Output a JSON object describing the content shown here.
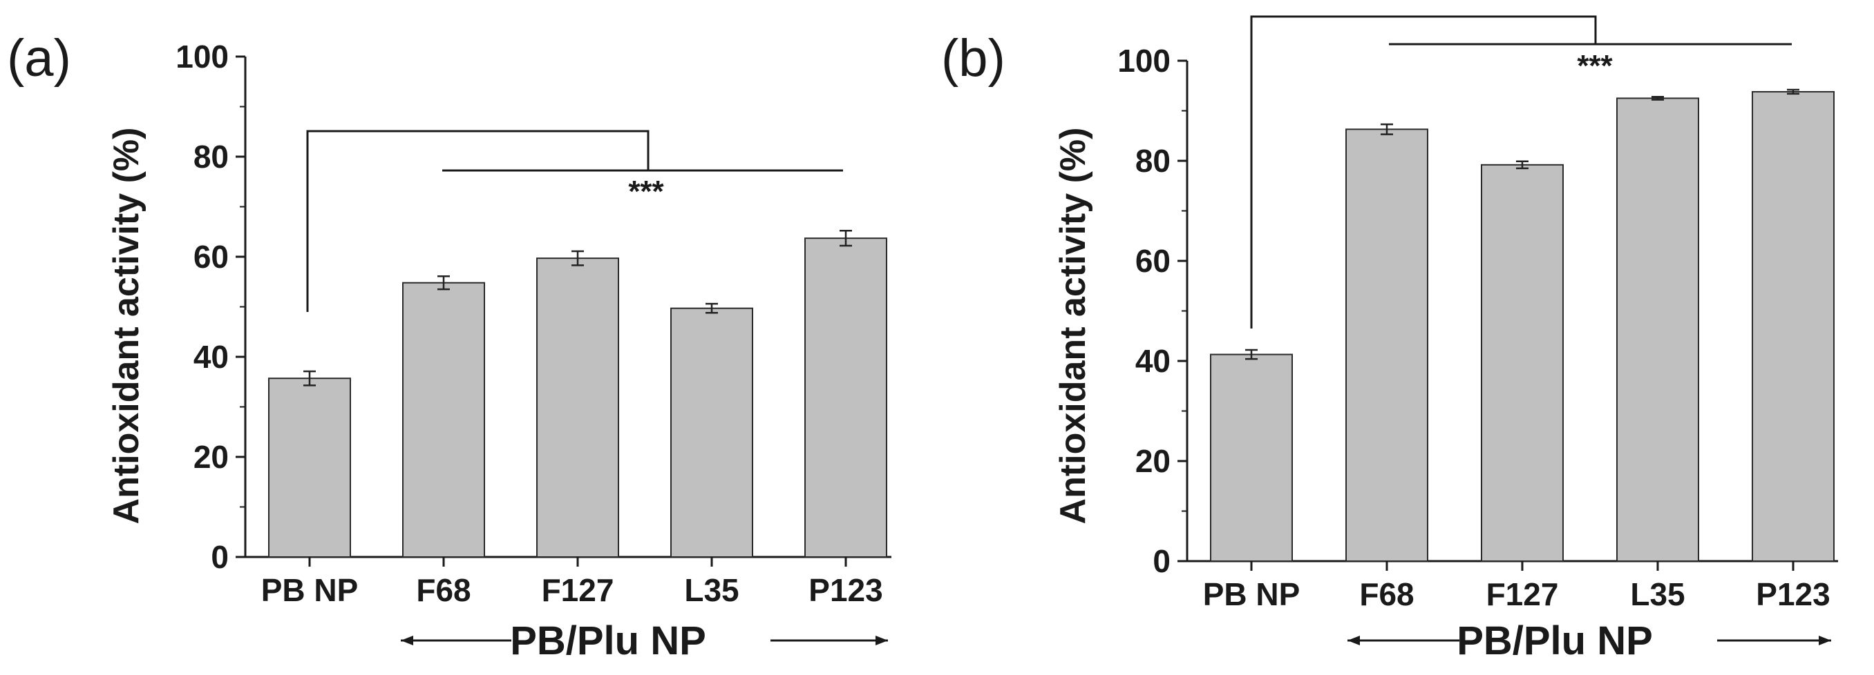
{
  "chart_data": [
    {
      "panel": "(a)",
      "type": "bar",
      "categories": [
        "PB NP",
        "F68",
        "F127",
        "L35",
        "P123"
      ],
      "values": [
        35.7,
        54.8,
        59.7,
        49.7,
        63.7
      ],
      "errors": [
        1.4,
        1.3,
        1.4,
        0.9,
        1.5
      ],
      "ylabel": "Antioxidant activity (%)",
      "xlabel": "",
      "group_label": "PB/Plu NP",
      "ylim": [
        0,
        100
      ],
      "yticks": [
        0,
        20,
        40,
        60,
        80,
        100
      ],
      "significance": "***",
      "bar_color": "#c0c0c0"
    },
    {
      "panel": "(b)",
      "type": "bar",
      "categories": [
        "PB NP",
        "F68",
        "F127",
        "L35",
        "P123"
      ],
      "values": [
        41.3,
        86.3,
        79.2,
        92.5,
        93.8
      ],
      "errors": [
        0.9,
        1.0,
        0.7,
        0.3,
        0.4
      ],
      "ylabel": "Antioxidant activity (%)",
      "xlabel": "",
      "group_label": "PB/Plu NP",
      "ylim": [
        0,
        100
      ],
      "yticks": [
        0,
        20,
        40,
        60,
        80,
        100
      ],
      "significance": "***",
      "bar_color": "#c0c0c0"
    }
  ]
}
